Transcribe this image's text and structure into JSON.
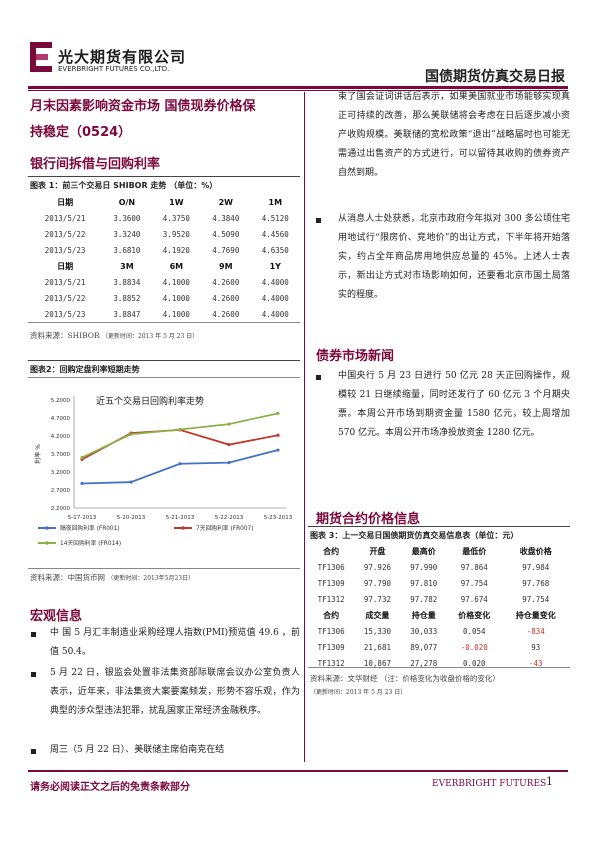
{
  "header": {
    "company_cn": "光大期货有限公司",
    "company_en": "EVERBRIGHT FUTURES CO.,LTD.",
    "report_title": "国债期货仿真交易日报"
  },
  "title_lines": [
    "月末因素影响资金市场 国债现券价格保",
    "持稳定（0524）"
  ],
  "sec_interbank": "银行间拆借与回购利率",
  "shibor": {
    "caption": "图表 1：前三个交易日 SHIBOR 走势 （单位：%）",
    "head1": [
      "日期",
      "O/N",
      "1W",
      "2W",
      "1M"
    ],
    "rows1": [
      [
        "2013/5/21",
        "3.3600",
        "4.3750",
        "4.3840",
        "4.5120"
      ],
      [
        "2013/5/22",
        "3.3240",
        "3.9520",
        "4.5090",
        "4.4560"
      ],
      [
        "2013/5/23",
        "3.6810",
        "4.1920",
        "4.7690",
        "4.6350"
      ]
    ],
    "head2": [
      "日期",
      "3M",
      "6M",
      "9M",
      "1Y"
    ],
    "rows2": [
      [
        "2013/5/21",
        "3.8834",
        "4.1000",
        "4.2600",
        "4.4000"
      ],
      [
        "2013/5/22",
        "3.8852",
        "4.1000",
        "4.2600",
        "4.4000"
      ],
      [
        "2013/5/23",
        "3.8847",
        "4.1000",
        "4.2600",
        "4.4000"
      ]
    ],
    "source": "资料来源：SHIBOR",
    "source_note": "（更新时间：2013 年 5 月 23 日）"
  },
  "repo_chart": {
    "caption": "图表2：回购定盘利率短期走势",
    "source": "资料来源：中国货币网",
    "source_note": "（更新时间：2013年5月23日）"
  },
  "chart_data": {
    "type": "line",
    "title": "近五个交易日回购利率走势",
    "ylabel": "利率 %",
    "categories": [
      "5-17-2013",
      "5-20-2013",
      "5-21-2013",
      "5-22-2013",
      "5-23-2013"
    ],
    "yticks": [
      "2.2000",
      "2.7000",
      "3.2000",
      "3.7000",
      "4.2000",
      "4.7000",
      "5.2000"
    ],
    "ylim": [
      2.2,
      5.2
    ],
    "series": [
      {
        "name": "隔夜回购利率 (FR001)",
        "color": "#4472c4",
        "values": [
          2.88,
          2.92,
          3.43,
          3.46,
          3.81
        ]
      },
      {
        "name": "7天回购利率 (FR007)",
        "color": "#c0392b",
        "values": [
          3.55,
          4.28,
          4.37,
          3.96,
          4.22
        ]
      },
      {
        "name": "14天回购利率 (FR014)",
        "color": "#8db048",
        "values": [
          3.6,
          4.25,
          4.38,
          4.53,
          4.83
        ]
      }
    ]
  },
  "sec_macro": "宏观信息",
  "macro_paras": [
    "中 国 5 月汇丰制造业采购经理人指数(PMI)预览值 49.6 ，前值 50.4。",
    "5 月 22 日，银监会处置非法集资部际联席会议办公室负责人表示，近年来，非法集资大案要案频发，形势不容乐观，作为典型的涉众型违法犯罪，扰乱国家正常经济金融秩序。",
    "周三（5 月 22 日）、美联储主席伯南克在结"
  ],
  "right_paras": [
    "束了国会证词讲话后表示，如果美国就业市场能够实现真正可持续的改善，那么美联储将会考虑在日后逐步减小资产收购规模。美联储的宽松政策“退出”战略届时也可能无需通过出售资产的方式进行，可以留待其收购的债券资产自然到期。",
    "从消息人士处获悉，北京市政府今年拟对 300 多公顷住宅用地试行“限房价、竞地价”的出让方式，下半年将开始落实，约占全年商品房用地供应总量的 45%。上述人士表示，新出让方式对市场影响如何，还要看北京市国土局落实的程度。"
  ],
  "sec_bond": "债券市场新闻",
  "bond_para": "中国央行 5 月 23 日进行 50 亿元 28 天正回购操作，规模较 21 日继续缩量，同时还发行了 60 亿元 3 个月期央票。本周公开市场到期资金量 1580 亿元，较上周增加 570 亿元。本周公开市场净投放资金 1280 亿元。",
  "sec_futures": "期货合约价格信息",
  "futures": {
    "caption": "图表 3：上一交易日国债期货仿真交易信息表（单位：元）",
    "head1": [
      "合约",
      "开盘",
      "最高价",
      "最低价",
      "收盘价格"
    ],
    "rows1": [
      [
        "TF1306",
        "97.926",
        "97.990",
        "97.864",
        "97.984"
      ],
      [
        "TF1309",
        "97.790",
        "97.810",
        "97.754",
        "97.768"
      ],
      [
        "TF1312",
        "97.732",
        "97.782",
        "97.674",
        "97.754"
      ]
    ],
    "head2": [
      "合约",
      "成交量",
      "持仓量",
      "价格变化",
      "持仓量变化"
    ],
    "rows2": [
      [
        "TF1306",
        "15,330",
        "30,033",
        "0.054",
        "-834"
      ],
      [
        "TF1309",
        "21,681",
        "89,077",
        "-0.020",
        "93"
      ],
      [
        "TF1312",
        "10,867",
        "27,278",
        "0.020",
        "-43"
      ]
    ],
    "source": "资料来源：文华财经 （注：价格变化为收盘价格的变化）",
    "source_note": "（更新时间：2013 年 5 月 23 日）",
    "neg_color": "#c0392b"
  },
  "footer": {
    "disclaimer": "请务必阅读正文之后的免责条款部分",
    "brand": "EVERBRIGHT FUTURES",
    "page": "1"
  }
}
